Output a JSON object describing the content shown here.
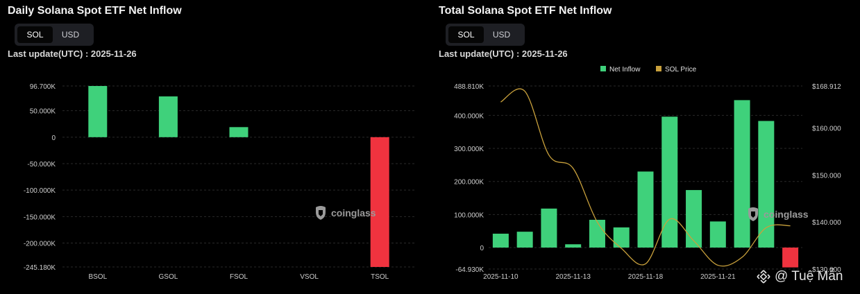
{
  "left": {
    "title": "Daily Solana Spot ETF Net Inflow",
    "toggle": {
      "sol_label": "SOL",
      "usd_label": "USD",
      "active": "SOL"
    },
    "last_update": "Last update(UTC) : 2025-11-26",
    "watermark": "coinglass"
  },
  "right": {
    "title": "Total Solana Spot ETF Net Inflow",
    "toggle": {
      "sol_label": "SOL",
      "usd_label": "USD",
      "active": "SOL"
    },
    "last_update": "Last update(UTC) : 2025-11-26",
    "watermark": "coinglass"
  },
  "credit": {
    "text": "@ Tuệ Mẫn",
    "icon": "binance-icon"
  },
  "chart_data": [
    {
      "type": "bar",
      "title": "Daily Solana Spot ETF Net Inflow",
      "categories": [
        "BSOL",
        "GSOL",
        "FSOL",
        "VSOL",
        "TSOL"
      ],
      "values": [
        96700,
        77000,
        19000,
        0,
        -245180
      ],
      "ylim": [
        -245180,
        96700
      ],
      "yticks": [
        96700,
        50000,
        0,
        -50000,
        -100000,
        -150000,
        -200000,
        -245180
      ],
      "ytick_labels": [
        "96.700K",
        "50.000K",
        "0",
        "-50.000K",
        "-100.000K",
        "-150.000K",
        "-200.000K",
        "-245.180K"
      ],
      "colors": {
        "positive": "#3fd17b",
        "negative": "#f0333f"
      },
      "grid": true,
      "legend": "none"
    },
    {
      "type": "bar",
      "title": "Total Solana Spot ETF Net Inflow",
      "x": [
        "2025-11-10",
        "2025-11-11",
        "2025-11-12",
        "2025-11-13",
        "2025-11-14",
        "2025-11-17",
        "2025-11-18",
        "2025-11-19",
        "2025-11-20",
        "2025-11-21",
        "2025-11-24",
        "2025-11-25",
        "2025-11-26"
      ],
      "xtick_labels": [
        "2025-11-10",
        "2025-11-13",
        "2025-11-18",
        "2025-11-21"
      ],
      "xtick_index": [
        0,
        3,
        6,
        9
      ],
      "series": [
        {
          "name": "Net Inflow",
          "type": "bar",
          "axis": "left",
          "color": "#3fd17b",
          "negative_color": "#f0333f",
          "values": [
            42000,
            48000,
            118000,
            10000,
            84000,
            61000,
            230000,
            396000,
            174000,
            79000,
            446000,
            383000,
            -60000
          ]
        },
        {
          "name": "SOL Price",
          "type": "line",
          "axis": "right",
          "color": "#c9a13c",
          "values": [
            165.5,
            167.8,
            154.2,
            151.4,
            140.0,
            134.4,
            131.1,
            140.6,
            136.0,
            130.8,
            132.5,
            138.8,
            139.2
          ]
        }
      ],
      "ylim": [
        -64930,
        488810
      ],
      "yticks": [
        488810,
        400000,
        300000,
        200000,
        100000,
        0,
        -64930
      ],
      "ytick_labels": [
        "488.810K",
        "400.000K",
        "300.000K",
        "200.000K",
        "100.000K",
        "0",
        "-64.930K"
      ],
      "y2lim": [
        130,
        168.912
      ],
      "y2ticks": [
        168.912,
        160,
        150,
        140,
        130
      ],
      "y2tick_labels": [
        "$168.912",
        "$160.000",
        "$150.000",
        "$140.000",
        "$130.000"
      ],
      "grid": true,
      "legend": "top-center"
    }
  ]
}
